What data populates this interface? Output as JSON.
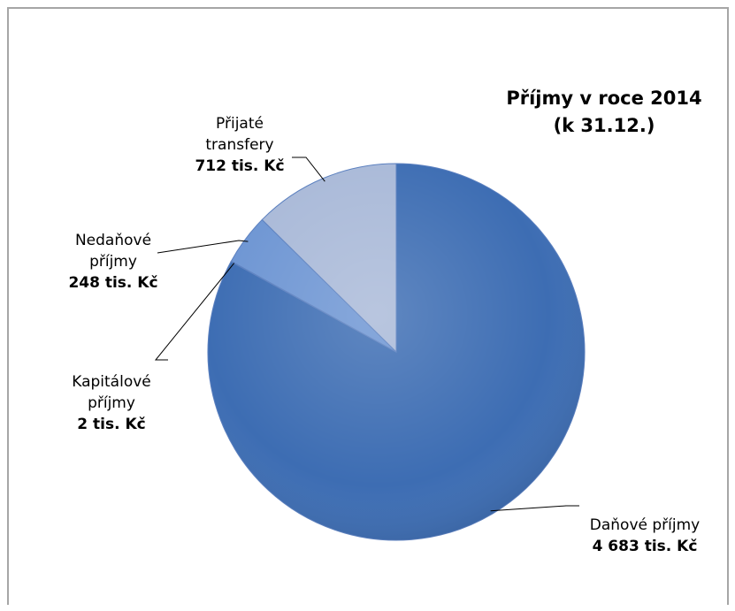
{
  "chart_data": {
    "type": "pie",
    "title": "Příjmy  v roce 2014\n(k 31.12.)",
    "slices": [
      {
        "name": "Daňové příjmy",
        "value": 4683,
        "value_label": "4 683 tis. Kč",
        "color": "#3d6db3"
      },
      {
        "name": "Kapitálové\npříjmy",
        "value": 2,
        "value_label": "2 tis. Kč",
        "color": "#4b78bd"
      },
      {
        "name": "Nedaňové\npříjmy",
        "value": 248,
        "value_label": "248 tis. Kč",
        "color": "#6d95d3"
      },
      {
        "name": "Přijaté\ntransfery",
        "value": 712,
        "value_label": "712 tis. Kč",
        "color": "#a9b9d8"
      }
    ],
    "start_angle_deg": 0,
    "direction": "clockwise",
    "legend": "none"
  }
}
